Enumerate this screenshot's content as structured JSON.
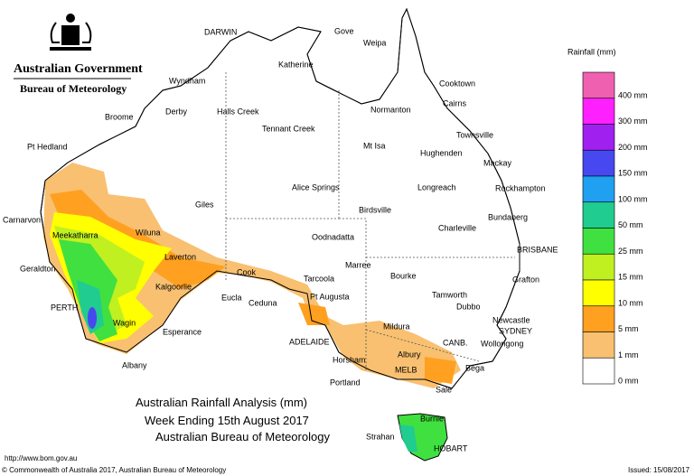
{
  "header": {
    "government": "Australian Government",
    "agency": "Bureau of Meteorology"
  },
  "caption": {
    "title": "Australian Rainfall Analysis (mm)",
    "period": "Week Ending 15th August 2017",
    "source": "Australian Bureau of Meteorology"
  },
  "footer": {
    "url": "http://www.bom.gov.au",
    "copyright": "© Commonwealth of Australia 2017, Australian Bureau of Meteorology",
    "issued": "Issued: 15/08/2017"
  },
  "legend": {
    "title": "Rainfall (mm)",
    "items": [
      {
        "label": "400 mm",
        "color": "#f060b0"
      },
      {
        "label": "300 mm",
        "color": "#ff20ff"
      },
      {
        "label": "200 mm",
        "color": "#a020f0"
      },
      {
        "label": "150 mm",
        "color": "#4848f0"
      },
      {
        "label": "100 mm",
        "color": "#20a0f0"
      },
      {
        "label": "50 mm",
        "color": "#20cc90"
      },
      {
        "label": "25 mm",
        "color": "#40e040"
      },
      {
        "label": "15 mm",
        "color": "#c0f020"
      },
      {
        "label": "10 mm",
        "color": "#ffff00"
      },
      {
        "label": "5 mm",
        "color": "#ffa020"
      },
      {
        "label": "1 mm",
        "color": "#f8c070"
      },
      {
        "label": "0 mm",
        "color": "#ffffff"
      }
    ]
  },
  "places": [
    "DARWIN",
    "Gove",
    "Weipa",
    "Katherine",
    "Wyndham",
    "Cooktown",
    "Cairns",
    "Derby",
    "Broome",
    "Halls Creek",
    "Normanton",
    "Tennant Creek",
    "Townsville",
    "Pt Hedland",
    "Mt Isa",
    "Hughenden",
    "Mackay",
    "Alice Springs",
    "Longreach",
    "Rockhampton",
    "Giles",
    "Birdsville",
    "Bundaberg",
    "Carnarvon",
    "Charleville",
    "Meekatharra",
    "Wiluna",
    "Oodnadatta",
    "BRISBANE",
    "Marree",
    "Laverton",
    "Geraldton",
    "Cook",
    "Bourke",
    "Tarcoola",
    "Grafton",
    "Kalgoorlie",
    "Eucla",
    "Ceduna",
    "Pt Augusta",
    "Tamworth",
    "Dubbo",
    "PERTH",
    "Newcastle",
    "Wagin",
    "Mildura",
    "SYDNEY",
    "Esperance",
    "Wollongong",
    "ADELAIDE",
    "CANB.",
    "Albury",
    "Albany",
    "Horsham",
    "MELB",
    "Bega",
    "Portland",
    "Sale",
    "Burnie",
    "Strahan",
    "HOBART"
  ]
}
